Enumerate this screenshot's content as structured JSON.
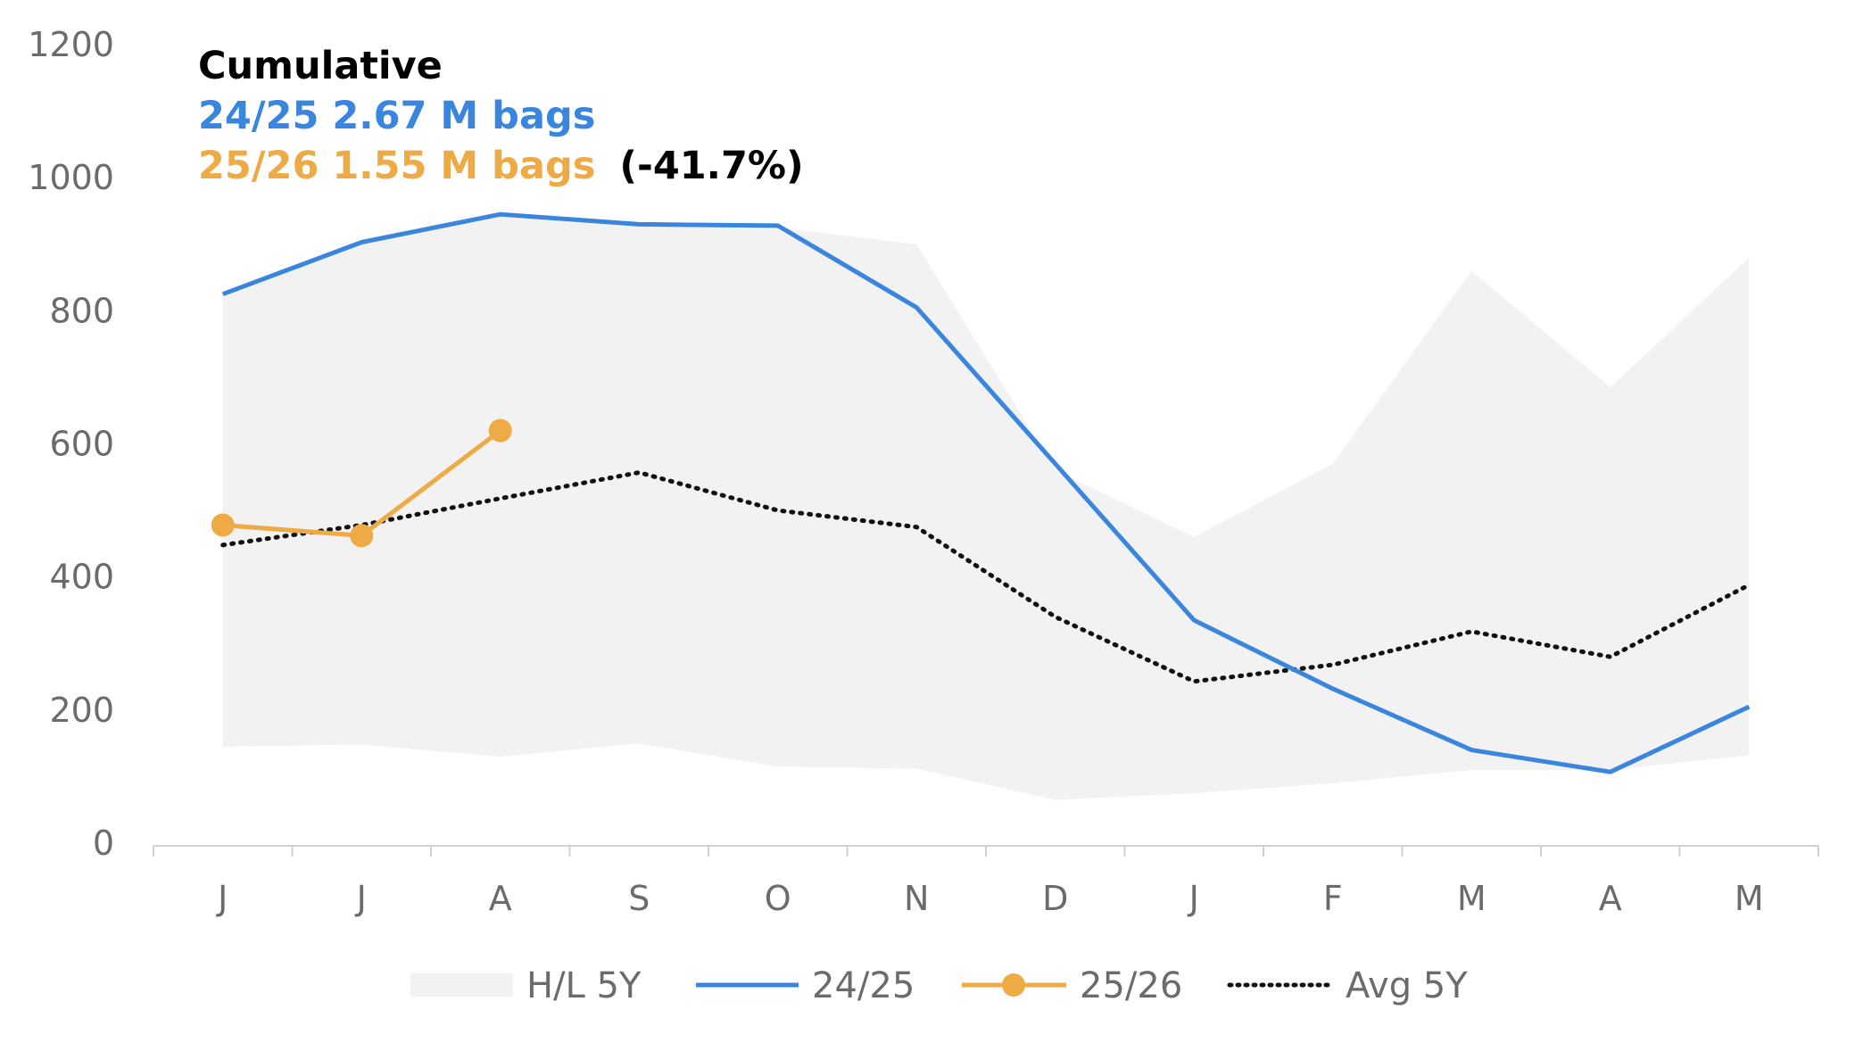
{
  "chart_data": {
    "type": "line",
    "categories": [
      "J",
      "J",
      "A",
      "S",
      "O",
      "N",
      "D",
      "J",
      "F",
      "M",
      "A",
      "M"
    ],
    "ylim": [
      0,
      1200
    ],
    "yticks": [
      "0",
      "200",
      "400",
      "600",
      "800",
      "1000",
      "1200"
    ],
    "band": {
      "name": "H/L 5Y",
      "color": "#f2f2f2",
      "high": [
        820,
        900,
        945,
        930,
        925,
        900,
        560,
        460,
        570,
        860,
        685,
        880
      ],
      "low": [
        145,
        148,
        130,
        150,
        115,
        112,
        65,
        75,
        90,
        110,
        110,
        132
      ]
    },
    "series": [
      {
        "name": "24/25",
        "color": "#3a85dd",
        "style": "solid",
        "values": [
          825,
          903,
          945,
          930,
          928,
          805,
          570,
          335,
          232,
          140,
          107,
          205
        ]
      },
      {
        "name": "25/26",
        "color": "#eeaa45",
        "style": "solid-markers",
        "values": [
          478,
          462,
          620,
          null,
          null,
          null,
          null,
          null,
          null,
          null,
          null,
          null
        ]
      },
      {
        "name": "Avg 5Y",
        "color": "#111111",
        "style": "dotted",
        "values": [
          448,
          478,
          518,
          557,
          500,
          475,
          340,
          243,
          268,
          318,
          280,
          388
        ]
      }
    ],
    "annotations": {
      "title": "Cumulative",
      "line1": "24/25 2.67 M bags",
      "line2": "25/26 1.55 M bags",
      "line2_pct": "(-41.7%)"
    },
    "legend": {
      "position": "bottom",
      "items": [
        "H/L 5Y",
        "24/25",
        "25/26",
        "Avg 5Y"
      ]
    },
    "grid": false
  }
}
